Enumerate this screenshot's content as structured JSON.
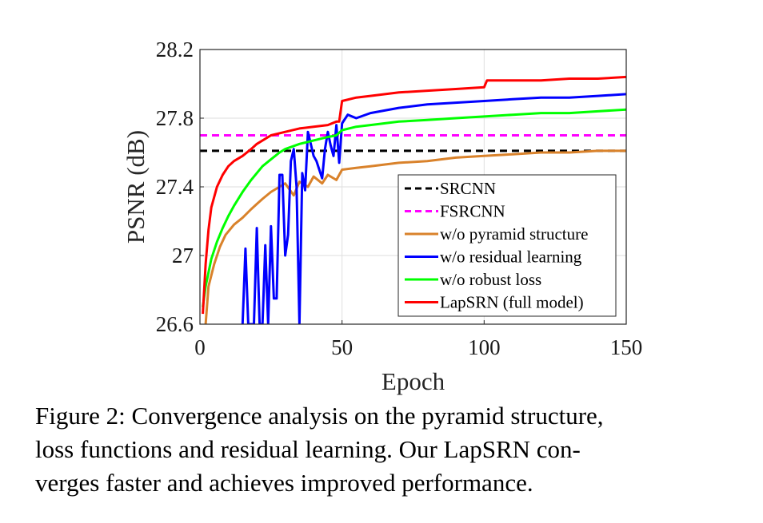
{
  "chart_data": {
    "type": "line",
    "title": "",
    "xlabel": "Epoch",
    "ylabel": "PSNR (dB)",
    "xlim": [
      0,
      150
    ],
    "ylim": [
      26.6,
      28.2
    ],
    "x_ticks": [
      "0",
      "50",
      "100",
      "150"
    ],
    "y_ticks": [
      "26.6",
      "27",
      "27.4",
      "27.8",
      "28.2"
    ],
    "grid": true,
    "legend_position": "bottom-right",
    "series": [
      {
        "name": "SRCNN",
        "color": "#000000",
        "style": "dashed",
        "x": [
          0,
          150
        ],
        "y": [
          27.61,
          27.61
        ]
      },
      {
        "name": "FSRCNN",
        "color": "#ff00ff",
        "style": "dashed",
        "x": [
          0,
          150
        ],
        "y": [
          27.7,
          27.7
        ]
      },
      {
        "name": "w/o pyramid structure",
        "color": "#d9822b",
        "style": "solid",
        "x": [
          2,
          3,
          5,
          7,
          9,
          12,
          15,
          18,
          20,
          22,
          25,
          28,
          30,
          33,
          35,
          38,
          40,
          43,
          45,
          48,
          50,
          55,
          60,
          70,
          80,
          90,
          100,
          110,
          120,
          130,
          140,
          150
        ],
        "y": [
          26.6,
          26.82,
          26.95,
          27.05,
          27.12,
          27.18,
          27.22,
          27.27,
          27.3,
          27.33,
          27.37,
          27.4,
          27.42,
          27.35,
          27.43,
          27.4,
          27.46,
          27.42,
          27.47,
          27.44,
          27.5,
          27.51,
          27.52,
          27.54,
          27.55,
          27.57,
          27.58,
          27.59,
          27.6,
          27.6,
          27.61,
          27.61
        ]
      },
      {
        "name": "w/o residual learning",
        "color": "#0000ff",
        "style": "solid",
        "x": [
          15,
          16,
          17,
          19,
          20,
          21,
          22,
          23,
          24,
          25,
          26,
          27,
          28,
          29,
          30,
          31,
          32,
          33,
          34,
          35,
          36,
          37,
          38,
          39,
          40,
          41,
          42,
          43,
          44,
          45,
          46,
          47,
          48,
          49,
          50,
          52,
          55,
          60,
          70,
          80,
          90,
          100,
          110,
          120,
          130,
          140,
          150
        ],
        "y": [
          26.6,
          27.04,
          26.6,
          26.6,
          27.16,
          26.6,
          26.6,
          27.06,
          26.6,
          27.17,
          26.75,
          26.75,
          27.47,
          27.47,
          27.0,
          27.12,
          27.55,
          27.62,
          27.4,
          26.6,
          27.48,
          27.38,
          27.72,
          27.65,
          27.58,
          27.55,
          27.5,
          27.45,
          27.62,
          27.72,
          27.64,
          27.58,
          27.76,
          27.54,
          27.77,
          27.82,
          27.8,
          27.83,
          27.86,
          27.88,
          27.89,
          27.9,
          27.91,
          27.92,
          27.92,
          27.93,
          27.94
        ]
      },
      {
        "name": "w/o robust loss",
        "color": "#00ff00",
        "style": "solid",
        "x": [
          1,
          2,
          4,
          6,
          8,
          10,
          12,
          15,
          18,
          20,
          22,
          25,
          28,
          30,
          35,
          40,
          45,
          48,
          50,
          55,
          60,
          70,
          80,
          90,
          100,
          110,
          120,
          130,
          140,
          150
        ],
        "y": [
          26.7,
          26.82,
          26.98,
          27.08,
          27.16,
          27.23,
          27.29,
          27.37,
          27.44,
          27.48,
          27.52,
          27.56,
          27.6,
          27.62,
          27.65,
          27.67,
          27.69,
          27.7,
          27.73,
          27.75,
          27.76,
          27.78,
          27.79,
          27.8,
          27.81,
          27.82,
          27.83,
          27.83,
          27.84,
          27.85
        ]
      },
      {
        "name": "LapSRN (full model)",
        "color": "#ff0000",
        "style": "solid",
        "x": [
          1,
          2,
          3,
          4,
          6,
          8,
          10,
          12,
          15,
          18,
          20,
          25,
          30,
          35,
          40,
          45,
          48,
          49,
          50,
          55,
          60,
          70,
          80,
          90,
          100,
          101,
          110,
          120,
          130,
          140,
          150
        ],
        "y": [
          26.66,
          26.95,
          27.15,
          27.28,
          27.4,
          27.47,
          27.52,
          27.55,
          27.58,
          27.62,
          27.65,
          27.7,
          27.72,
          27.74,
          27.75,
          27.76,
          27.78,
          27.78,
          27.9,
          27.92,
          27.93,
          27.95,
          27.96,
          27.97,
          27.98,
          28.02,
          28.02,
          28.02,
          28.03,
          28.03,
          28.04
        ]
      }
    ]
  },
  "caption": {
    "line1": "Figure 2:  Convergence analysis on the pyramid structure,",
    "line2": "loss functions and residual learning.  Our LapSRN con-",
    "line3": "verges faster and achieves improved performance."
  }
}
